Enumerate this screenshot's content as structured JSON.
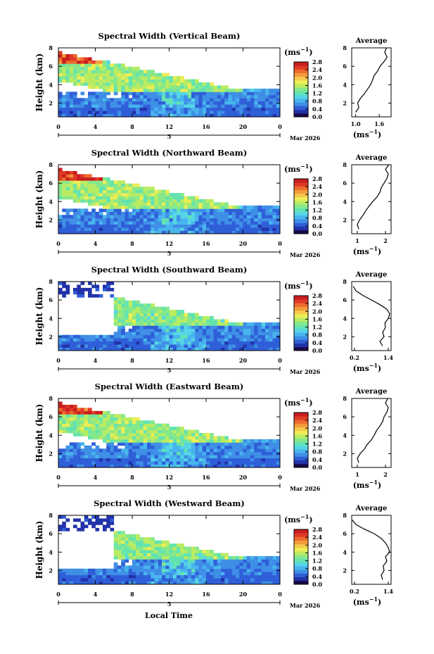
{
  "figure": {
    "xlabel": "Local Time",
    "date_label": "Mar 2026",
    "day_label": "5"
  },
  "colorbar": {
    "unit": "(ms",
    "unit_exp": "−1",
    "unit_close": ")",
    "colors": [
      "#1a0a4a",
      "#2233aa",
      "#2f5fd8",
      "#3f8fe6",
      "#48b5ee",
      "#56d6e6",
      "#63e3b0",
      "#86e88a",
      "#b9ec63",
      "#ecee55",
      "#f6c94a",
      "#f39a3a",
      "#ee6a2c",
      "#e03a26",
      "#c81e1e"
    ]
  },
  "chart_data": [
    {
      "type": "heatmap",
      "title": "Spectral Width (Vertical Beam)",
      "ylabel": "Height (km)",
      "xlim": [
        0,
        24
      ],
      "ylim": [
        0.5,
        8
      ],
      "x_ticks": [
        "0",
        "4",
        "8",
        "12",
        "16",
        "20",
        "0"
      ],
      "y_ticks": [
        "2",
        "4",
        "6",
        "8"
      ],
      "colorbar_ticks": [
        "0.0",
        "0.4",
        "0.8",
        "1.2",
        "1.6",
        "2.0",
        "2.4",
        "2.8"
      ],
      "profile": {
        "title": "Average",
        "xlabel": "(ms",
        "xlabel_exp": "−1",
        "xlabel_close": ")",
        "xlim": [
          0.9,
          1.9
        ],
        "x_ticks": [
          "1.0",
          "1.6"
        ],
        "x_tick_values": [
          1.0,
          1.6
        ],
        "heights": [
          1.0,
          1.5,
          2.0,
          2.5,
          3.0,
          3.5,
          4.0,
          4.5,
          5.0,
          5.5,
          6.0,
          6.5,
          7.0,
          7.5,
          8.0
        ],
        "values": [
          1.0,
          1.08,
          1.05,
          1.12,
          1.22,
          1.3,
          1.38,
          1.43,
          1.47,
          1.56,
          1.62,
          1.72,
          1.8,
          1.74,
          1.78
        ]
      }
    },
    {
      "type": "heatmap",
      "title": "Spectral Width (Northward Beam)",
      "ylabel": "Height (km)",
      "xlim": [
        0,
        24
      ],
      "ylim": [
        0.5,
        8
      ],
      "x_ticks": [
        "0",
        "4",
        "8",
        "12",
        "16",
        "20",
        "0"
      ],
      "y_ticks": [
        "2",
        "4",
        "6",
        "8"
      ],
      "colorbar_ticks": [
        "0.0",
        "0.4",
        "0.8",
        "1.2",
        "1.6",
        "2.0",
        "2.4",
        "2.8"
      ],
      "profile": {
        "title": "Average",
        "xlabel": "(ms",
        "xlabel_exp": "−1",
        "xlabel_close": ")",
        "xlim": [
          0.8,
          2.2
        ],
        "x_ticks": [
          "1",
          "2"
        ],
        "x_tick_values": [
          1,
          2
        ],
        "heights": [
          1.0,
          1.5,
          2.0,
          2.5,
          3.0,
          3.5,
          4.0,
          4.5,
          5.0,
          5.5,
          6.0,
          6.5,
          7.0,
          7.5,
          8.0
        ],
        "values": [
          1.05,
          1.0,
          1.08,
          1.2,
          1.3,
          1.42,
          1.55,
          1.7,
          1.8,
          1.85,
          1.95,
          2.05,
          2.1,
          2.0,
          2.12
        ]
      }
    },
    {
      "type": "heatmap",
      "title": "Spectral Width (Southward Beam)",
      "ylabel": "Height (km)",
      "xlim": [
        0,
        24
      ],
      "ylim": [
        0.5,
        8
      ],
      "x_ticks": [
        "0",
        "4",
        "8",
        "12",
        "16",
        "20",
        "0"
      ],
      "y_ticks": [
        "2",
        "4",
        "6",
        "8"
      ],
      "colorbar_ticks": [
        "0.0",
        "0.4",
        "0.8",
        "1.2",
        "1.6",
        "2.0",
        "2.4",
        "2.8"
      ],
      "profile": {
        "title": "Average",
        "xlabel": "(ms",
        "xlabel_exp": "−1",
        "xlabel_close": ")",
        "xlim": [
          0.1,
          1.5
        ],
        "x_ticks": [
          "0.2",
          "1.4"
        ],
        "x_tick_values": [
          0.2,
          1.4
        ],
        "heights": [
          1.0,
          1.5,
          2.0,
          2.5,
          3.0,
          3.5,
          4.0,
          4.5,
          5.0,
          5.5,
          6.0,
          6.5,
          7.0,
          7.5
        ],
        "values": [
          1.2,
          1.1,
          1.25,
          1.2,
          1.3,
          1.28,
          1.4,
          1.45,
          1.35,
          1.1,
          0.8,
          0.5,
          0.25,
          0.15
        ]
      }
    },
    {
      "type": "heatmap",
      "title": "Spectral Width (Eastward Beam)",
      "ylabel": "Height (km)",
      "xlim": [
        0,
        24
      ],
      "ylim": [
        0.5,
        8
      ],
      "x_ticks": [
        "0",
        "4",
        "8",
        "12",
        "16",
        "20",
        "0"
      ],
      "y_ticks": [
        "2",
        "4",
        "6",
        "8"
      ],
      "colorbar_ticks": [
        "0.0",
        "0.4",
        "0.8",
        "1.2",
        "1.6",
        "2.0",
        "2.4",
        "2.8"
      ],
      "profile": {
        "title": "Average",
        "xlabel": "(ms",
        "xlabel_exp": "−1",
        "xlabel_close": ")",
        "xlim": [
          0.8,
          2.2
        ],
        "x_ticks": [
          "1",
          "2"
        ],
        "x_tick_values": [
          1,
          2
        ],
        "heights": [
          1.0,
          1.5,
          2.0,
          2.5,
          3.0,
          3.5,
          4.0,
          4.5,
          5.0,
          5.5,
          6.0,
          6.5,
          7.0,
          7.5,
          8.0
        ],
        "values": [
          1.05,
          1.0,
          1.1,
          1.25,
          1.35,
          1.5,
          1.6,
          1.68,
          1.8,
          1.9,
          1.95,
          2.05,
          2.1,
          2.0,
          2.08
        ]
      }
    },
    {
      "type": "heatmap",
      "title": "Spectral Width (Westward Beam)",
      "ylabel": "Height (km)",
      "xlim": [
        0,
        24
      ],
      "ylim": [
        0.5,
        8
      ],
      "x_ticks": [
        "0",
        "4",
        "8",
        "12",
        "16",
        "20",
        "0"
      ],
      "y_ticks": [
        "2",
        "4",
        "6",
        "8"
      ],
      "colorbar_ticks": [
        "0.0",
        "0.4",
        "0.8",
        "1.2",
        "1.6",
        "2.0",
        "2.4",
        "2.8"
      ],
      "profile": {
        "title": "Average",
        "xlabel": "(ms",
        "xlabel_exp": "−1",
        "xlabel_close": ")",
        "xlim": [
          0.1,
          1.5
        ],
        "x_ticks": [
          "0.2",
          "1.4"
        ],
        "x_tick_values": [
          0.2,
          1.4
        ],
        "heights": [
          1.0,
          1.5,
          2.0,
          2.5,
          3.0,
          3.5,
          4.0,
          4.5,
          5.0,
          5.5,
          6.0,
          6.5,
          7.0,
          7.5
        ],
        "values": [
          1.2,
          1.15,
          1.25,
          1.22,
          1.35,
          1.3,
          1.45,
          1.4,
          1.3,
          1.15,
          0.9,
          0.55,
          0.25,
          0.12
        ]
      }
    }
  ]
}
